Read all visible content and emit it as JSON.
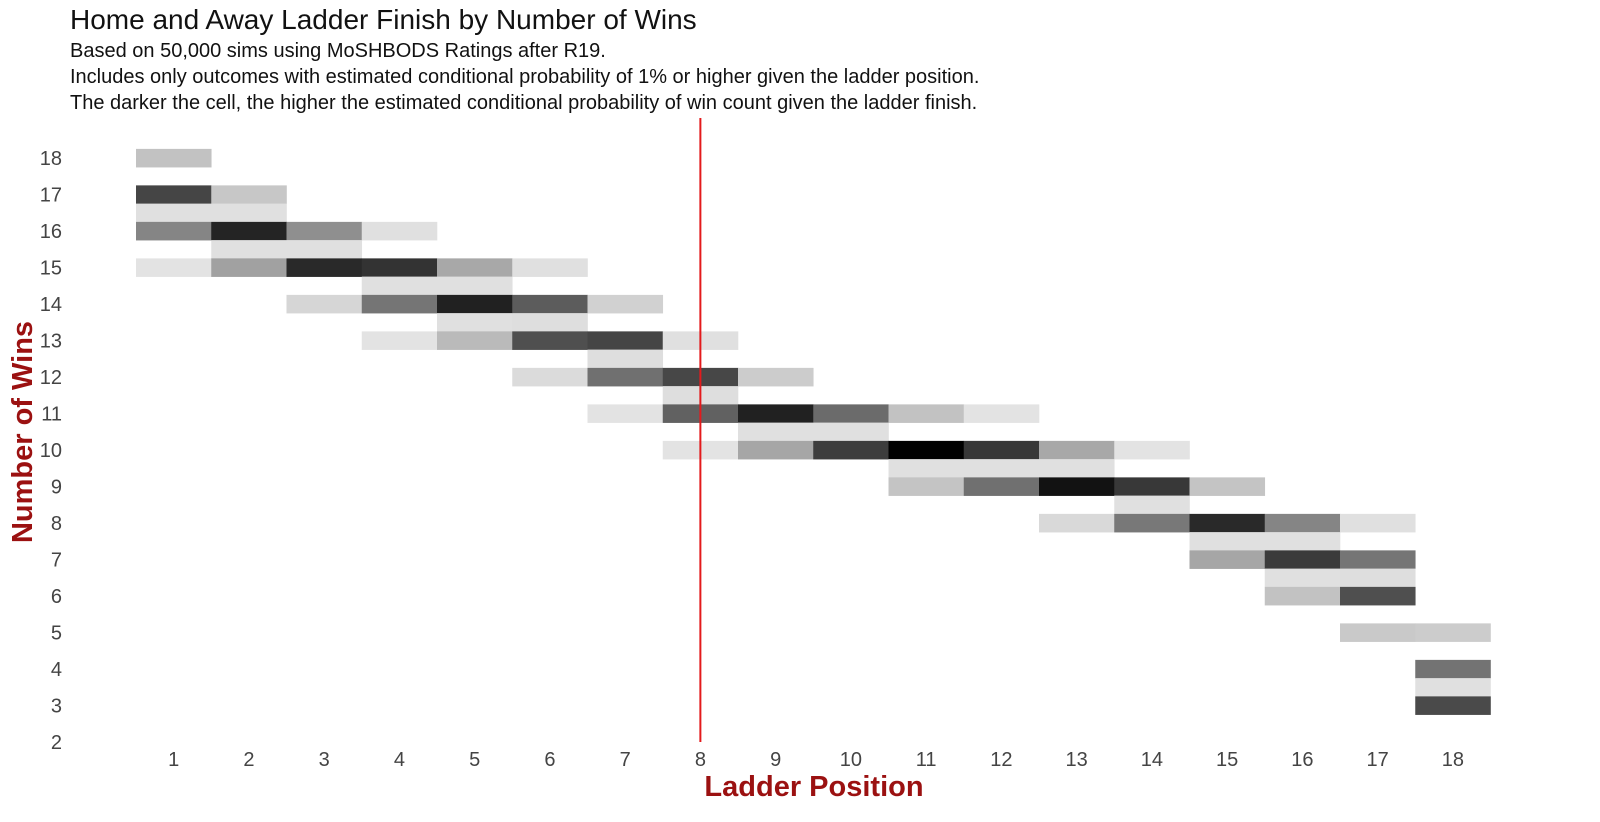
{
  "chart_data": {
    "type": "heatmap",
    "title": "Home and Away Ladder Finish by Number of Wins",
    "subtitle": [
      "Based on 50,000 sims using MoSHBODS Ratings after R19.",
      "Includes only outcomes with estimated conditional probability of 1% or higher given the ladder position.",
      "The darker the cell, the higher the estimated conditional probability of win count given the ladder finish."
    ],
    "xlabel": "Ladder Position",
    "ylabel": "Number of Wins",
    "x_ticks": [
      1,
      2,
      3,
      4,
      5,
      6,
      7,
      8,
      9,
      10,
      11,
      12,
      13,
      14,
      15,
      16,
      17,
      18
    ],
    "y_ticks": [
      2,
      3,
      4,
      5,
      6,
      7,
      8,
      9,
      10,
      11,
      12,
      13,
      14,
      15,
      16,
      17,
      18
    ],
    "xlim": [
      0.5,
      18.5
    ],
    "ylim": [
      2,
      18
    ],
    "cell_height_wins": 0.5,
    "value_scale": "darkness 0 (white) to 1 (black)",
    "reference_line": {
      "x": 8,
      "color": "#e31a1c"
    },
    "colors": {
      "axis_label": "#9b1111",
      "tick": "#444444",
      "title": "#111111"
    },
    "cells": [
      {
        "x": 1,
        "y": 18,
        "v": 0.24
      },
      {
        "x": 1,
        "y": 17,
        "v": 0.73
      },
      {
        "x": 1,
        "y": 16.5,
        "v": 0.12
      },
      {
        "x": 1,
        "y": 16,
        "v": 0.48
      },
      {
        "x": 1,
        "y": 15,
        "v": 0.11
      },
      {
        "x": 2,
        "y": 17,
        "v": 0.22
      },
      {
        "x": 2,
        "y": 16.5,
        "v": 0.12
      },
      {
        "x": 2,
        "y": 16,
        "v": 0.86
      },
      {
        "x": 2,
        "y": 15.5,
        "v": 0.12
      },
      {
        "x": 2,
        "y": 15,
        "v": 0.37
      },
      {
        "x": 3,
        "y": 16,
        "v": 0.44
      },
      {
        "x": 3,
        "y": 15.5,
        "v": 0.12
      },
      {
        "x": 3,
        "y": 15,
        "v": 0.84
      },
      {
        "x": 3,
        "y": 14,
        "v": 0.16
      },
      {
        "x": 4,
        "y": 16,
        "v": 0.12
      },
      {
        "x": 4,
        "y": 15,
        "v": 0.8
      },
      {
        "x": 4,
        "y": 14.5,
        "v": 0.12
      },
      {
        "x": 4,
        "y": 14,
        "v": 0.54
      },
      {
        "x": 4,
        "y": 13,
        "v": 0.11
      },
      {
        "x": 5,
        "y": 15,
        "v": 0.34
      },
      {
        "x": 5,
        "y": 14.5,
        "v": 0.12
      },
      {
        "x": 5,
        "y": 14,
        "v": 0.87
      },
      {
        "x": 5,
        "y": 13.5,
        "v": 0.12
      },
      {
        "x": 5,
        "y": 13,
        "v": 0.27
      },
      {
        "x": 6,
        "y": 15,
        "v": 0.12
      },
      {
        "x": 6,
        "y": 14,
        "v": 0.64
      },
      {
        "x": 6,
        "y": 13.5,
        "v": 0.13
      },
      {
        "x": 6,
        "y": 13,
        "v": 0.69
      },
      {
        "x": 6,
        "y": 12,
        "v": 0.14
      },
      {
        "x": 7,
        "y": 14,
        "v": 0.18
      },
      {
        "x": 7,
        "y": 13,
        "v": 0.73
      },
      {
        "x": 7,
        "y": 12.5,
        "v": 0.13
      },
      {
        "x": 7,
        "y": 12,
        "v": 0.56
      },
      {
        "x": 7,
        "y": 11,
        "v": 0.11
      },
      {
        "x": 8,
        "y": 13,
        "v": 0.12
      },
      {
        "x": 8,
        "y": 12,
        "v": 0.72
      },
      {
        "x": 8,
        "y": 11.5,
        "v": 0.13
      },
      {
        "x": 8,
        "y": 11,
        "v": 0.62
      },
      {
        "x": 8,
        "y": 10,
        "v": 0.11
      },
      {
        "x": 9,
        "y": 12,
        "v": 0.2
      },
      {
        "x": 9,
        "y": 11,
        "v": 0.87
      },
      {
        "x": 9,
        "y": 10.5,
        "v": 0.12
      },
      {
        "x": 9,
        "y": 10,
        "v": 0.35
      },
      {
        "x": 10,
        "y": 11,
        "v": 0.58
      },
      {
        "x": 10,
        "y": 10.5,
        "v": 0.12
      },
      {
        "x": 10,
        "y": 10,
        "v": 0.76
      },
      {
        "x": 11,
        "y": 11,
        "v": 0.24
      },
      {
        "x": 11,
        "y": 10,
        "v": 1.0
      },
      {
        "x": 11,
        "y": 9.5,
        "v": 0.12
      },
      {
        "x": 11,
        "y": 9,
        "v": 0.23
      },
      {
        "x": 12,
        "y": 11,
        "v": 0.11
      },
      {
        "x": 12,
        "y": 10,
        "v": 0.78
      },
      {
        "x": 12,
        "y": 9.5,
        "v": 0.12
      },
      {
        "x": 12,
        "y": 9,
        "v": 0.56
      },
      {
        "x": 13,
        "y": 10,
        "v": 0.34
      },
      {
        "x": 13,
        "y": 9.5,
        "v": 0.12
      },
      {
        "x": 13,
        "y": 9,
        "v": 0.93
      },
      {
        "x": 13,
        "y": 8,
        "v": 0.15
      },
      {
        "x": 14,
        "y": 10,
        "v": 0.11
      },
      {
        "x": 14,
        "y": 9,
        "v": 0.78
      },
      {
        "x": 14,
        "y": 8.5,
        "v": 0.12
      },
      {
        "x": 14,
        "y": 8,
        "v": 0.53
      },
      {
        "x": 15,
        "y": 9,
        "v": 0.23
      },
      {
        "x": 15,
        "y": 8,
        "v": 0.84
      },
      {
        "x": 15,
        "y": 7.5,
        "v": 0.12
      },
      {
        "x": 15,
        "y": 7,
        "v": 0.35
      },
      {
        "x": 16,
        "y": 8,
        "v": 0.48
      },
      {
        "x": 16,
        "y": 7.5,
        "v": 0.12
      },
      {
        "x": 16,
        "y": 7,
        "v": 0.77
      },
      {
        "x": 16,
        "y": 6.5,
        "v": 0.12
      },
      {
        "x": 16,
        "y": 6,
        "v": 0.24
      },
      {
        "x": 17,
        "y": 8,
        "v": 0.12
      },
      {
        "x": 17,
        "y": 7,
        "v": 0.54
      },
      {
        "x": 17,
        "y": 6.5,
        "v": 0.13
      },
      {
        "x": 17,
        "y": 6,
        "v": 0.69
      },
      {
        "x": 17,
        "y": 5,
        "v": 0.21
      },
      {
        "x": 18,
        "y": 5,
        "v": 0.2
      },
      {
        "x": 18,
        "y": 4,
        "v": 0.55
      },
      {
        "x": 18,
        "y": 3.5,
        "v": 0.12
      },
      {
        "x": 18,
        "y": 3,
        "v": 0.71
      }
    ]
  }
}
